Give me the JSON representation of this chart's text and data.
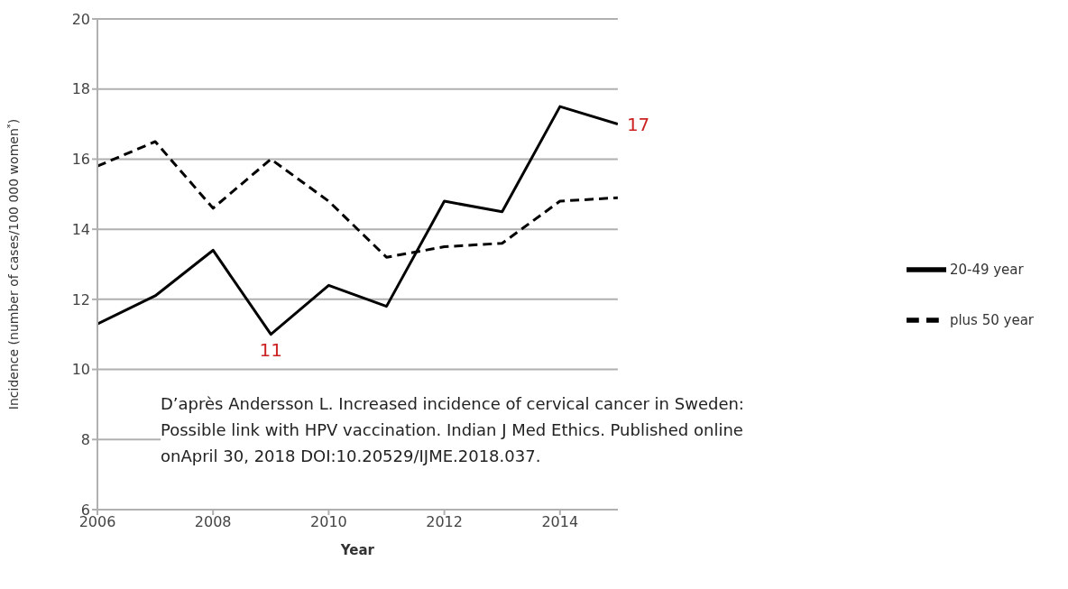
{
  "chart_data": {
    "type": "line",
    "xlabel": "Year",
    "ylabel": "Incidence (number of cases/100 000 women$^{*}$)",
    "x": [
      2006,
      2007,
      2008,
      2009,
      2010,
      2011,
      2012,
      2013,
      2014,
      2015
    ],
    "series": [
      {
        "name": "20-49 year",
        "color": "#000000",
        "line_style": "solid",
        "values": [
          11.3,
          12.1,
          13.4,
          11,
          12.4,
          11.8,
          14.8,
          14.5,
          17.5,
          17
        ]
      },
      {
        "name": "plus 50 year",
        "color": "#000000",
        "line_style": "dashed",
        "values": [
          15.8,
          16.5,
          14.6,
          16,
          14.8,
          13.2,
          13.5,
          13.6,
          14.8,
          14.9
        ]
      }
    ],
    "xlim": [
      2006,
      2015
    ],
    "xticks": [
      2006,
      2008,
      2010,
      2012,
      2014
    ],
    "ylim": [
      6,
      20
    ],
    "yticks": [
      6,
      8,
      10,
      12,
      14,
      16,
      18,
      20
    ],
    "grid": "y",
    "legend": "right",
    "marker": "none",
    "annotations": [
      {
        "text": "11",
        "x": 2009,
        "y": 11
      },
      {
        "text": "17",
        "x": 2015,
        "y": 17
      },
      "D’après Andersson L. Increased incidence of cervical cancer in Sweden: Possible link with HPV vaccination. Indian J Med Ethics. Published online onApril 30, 2018 DOI:10.20529/IJME.2018.037."
    ]
  }
}
